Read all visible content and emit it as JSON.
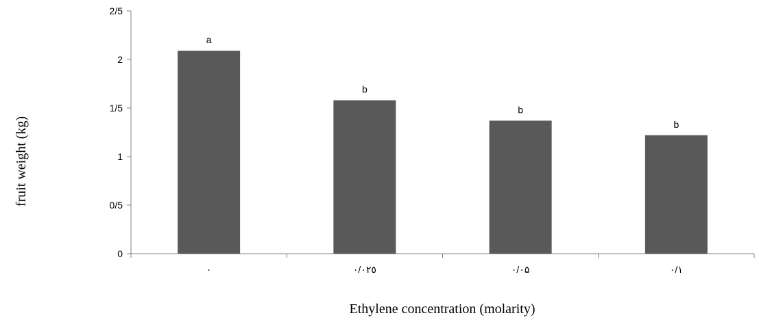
{
  "chart_data": {
    "type": "bar",
    "title": "",
    "xlabel": "Ethylene concentration (molarity)",
    "ylabel": "fruit weight (kg)",
    "categories": [
      "٠",
      "٠/٠٢٥",
      "٠/٠۵",
      "٠/١"
    ],
    "values": [
      2.09,
      1.58,
      1.37,
      1.22
    ],
    "bar_labels": [
      "a",
      "b",
      "b",
      "b"
    ],
    "ylim": [
      0,
      2.5
    ],
    "yticks": [
      0,
      0.5,
      1,
      1.5,
      2,
      2.5
    ],
    "ytick_labels": [
      "0",
      "0/5",
      "1",
      "1/5",
      "2",
      "2/5"
    ],
    "grid": false,
    "legend": "none",
    "bar_color": "#595959"
  }
}
